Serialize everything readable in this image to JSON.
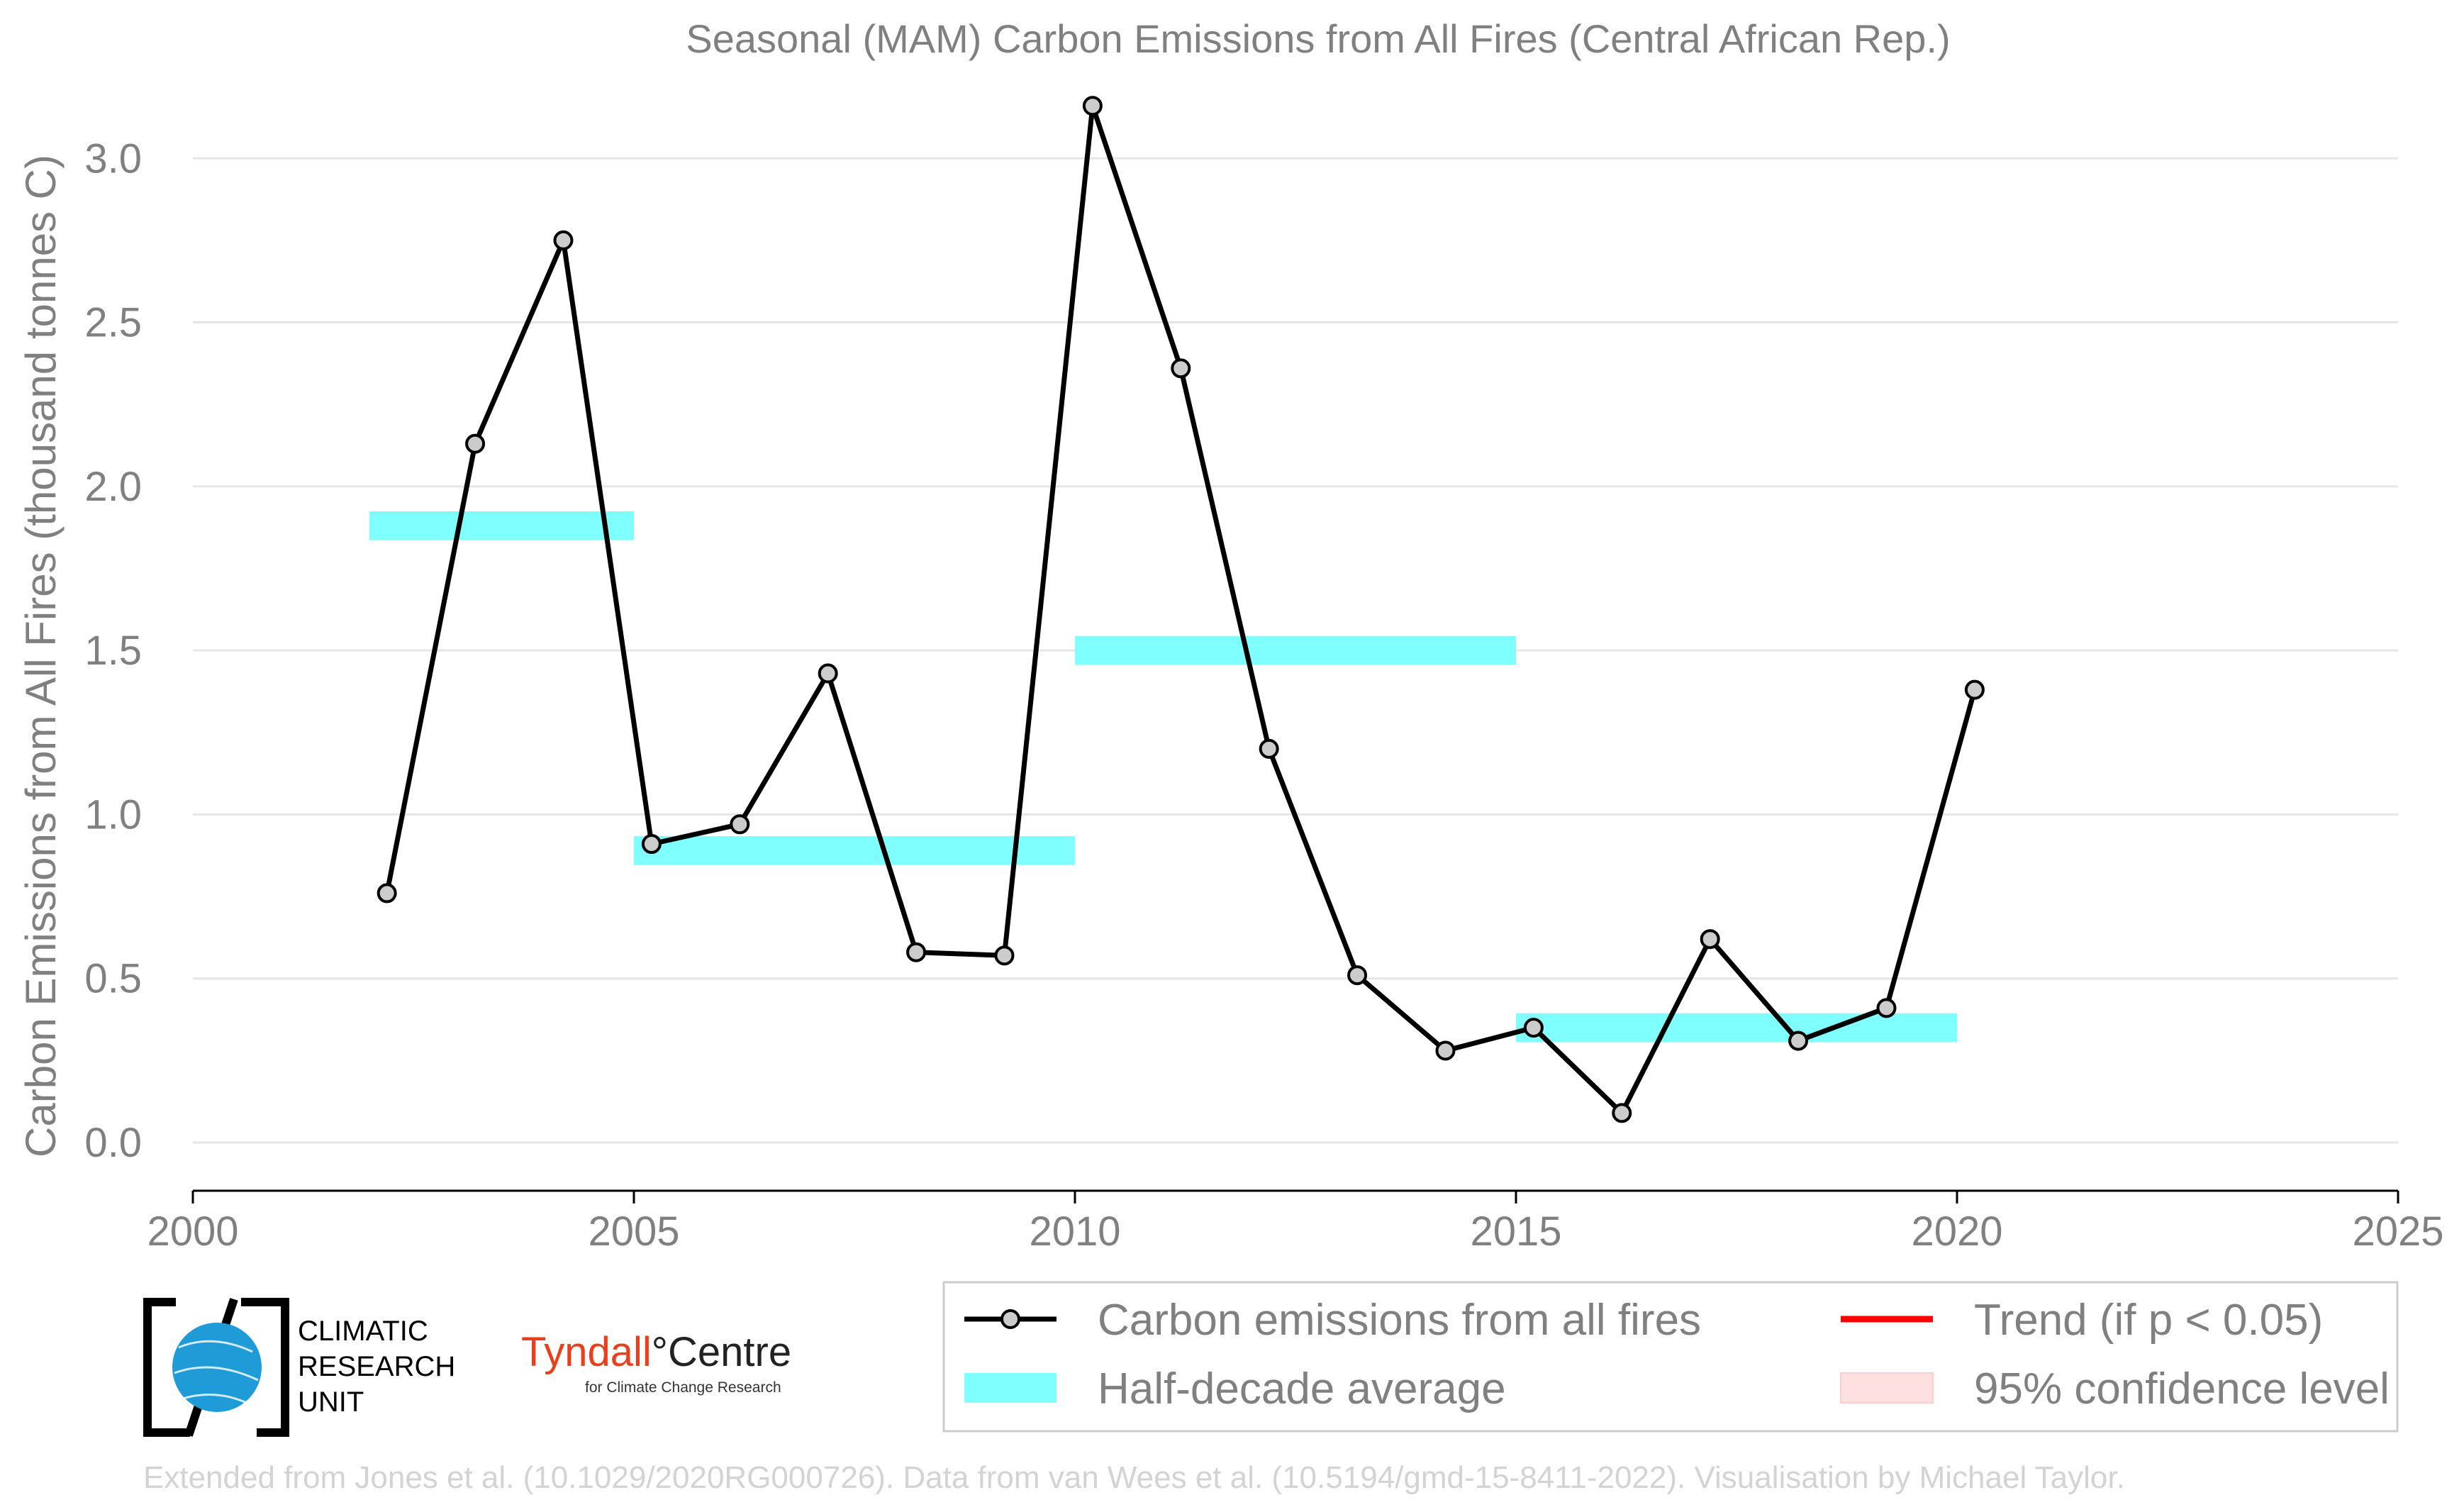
{
  "chart_data": {
    "type": "line",
    "title": "Seasonal (MAM) Carbon Emissions from All Fires (Central African Rep.)",
    "ylabel": "Carbon Emissions from All Fires (thousand tonnes C)",
    "xlabel": "",
    "xlim": [
      2000,
      2025
    ],
    "ylim": [
      -0.08,
      3.18
    ],
    "x_ticks": [
      "2000",
      "2005",
      "2010",
      "2015",
      "2020",
      "2025"
    ],
    "y_ticks": [
      "0.0",
      "0.5",
      "1.0",
      "1.5",
      "2.0",
      "2.5",
      "3.0"
    ],
    "grid": "horizontal",
    "legend_position": "bottom-right",
    "series": [
      {
        "name": "Carbon emissions from all fires",
        "color": "#000000",
        "marker_fill": "#cccccc",
        "x": [
          2002.2,
          2003.2,
          2004.2,
          2005.2,
          2006.2,
          2007.2,
          2008.2,
          2009.2,
          2010.2,
          2011.2,
          2012.2,
          2013.2,
          2014.2,
          2015.2,
          2016.2,
          2017.2,
          2018.2,
          2019.2,
          2020.2
        ],
        "y": [
          0.76,
          2.13,
          2.75,
          0.91,
          0.97,
          1.43,
          0.58,
          0.57,
          3.16,
          2.36,
          1.2,
          0.51,
          0.28,
          0.35,
          0.09,
          0.62,
          0.31,
          0.41,
          1.38
        ]
      }
    ],
    "half_decade_average": {
      "name": "Half-decade average",
      "color": "#80ffff",
      "segments": [
        {
          "x_start": 2002,
          "x_end": 2005,
          "value": 1.88
        },
        {
          "x_start": 2005,
          "x_end": 2010,
          "value": 0.89
        },
        {
          "x_start": 2010,
          "x_end": 2015,
          "value": 1.5
        },
        {
          "x_start": 2015,
          "x_end": 2020,
          "value": 0.35
        }
      ]
    },
    "legend": [
      {
        "label": "Carbon emissions from all fires",
        "kind": "line-marker",
        "color": "#000000"
      },
      {
        "label": "Trend (if p < 0.05)",
        "kind": "line",
        "color": "#ff0000"
      },
      {
        "label": "Half-decade average",
        "kind": "band",
        "color": "#80ffff"
      },
      {
        "label": "95% confidence level",
        "kind": "patch",
        "color": "#ffe0e0"
      }
    ]
  },
  "logos": {
    "cru": [
      "CLIMATIC",
      "RESEARCH",
      "UNIT"
    ],
    "tyndall_name": "Tyndall",
    "tyndall_degree": "°",
    "tyndall_centre": "Centre",
    "tyndall_sub": "for Climate Change Research"
  },
  "credit": "Extended from Jones et al. (10.1029/2020RG000726). Data from van Wees et al. (10.5194/gmd-15-8411-2022). Visualisation by Michael Taylor."
}
